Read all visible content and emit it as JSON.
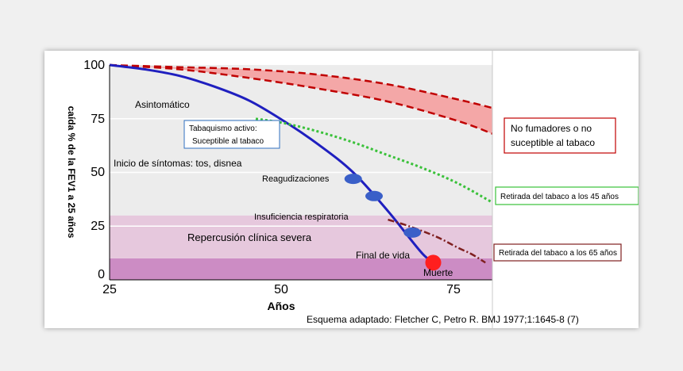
{
  "chart_data": {
    "type": "line",
    "xlabel": "Años",
    "ylabel": "caída % de la FEV1 a 25 años",
    "xlim": [
      25,
      80
    ],
    "ylim": [
      0,
      100
    ],
    "x_ticks": [
      "25",
      "50",
      "75"
    ],
    "y_ticks": [
      "100",
      "75",
      "50",
      "25",
      "0"
    ],
    "background_bands": [
      {
        "from": 0,
        "to": 10,
        "color": "#cc8cc4"
      },
      {
        "from": 10,
        "to": 30,
        "color": "#e6c8dd"
      },
      {
        "from": 30,
        "to": 100,
        "color": "#ececec"
      }
    ],
    "series": [
      {
        "name": "No fumadores o no suceptible al tabaco",
        "style": "red-dashed-band",
        "color": "#c00000",
        "x": [
          25,
          35,
          45,
          55,
          65,
          75,
          80
        ],
        "upper": [
          100,
          99,
          98,
          95.5,
          91,
          84,
          80
        ],
        "lower": [
          100,
          98,
          94,
          89,
          83,
          74,
          68
        ]
      },
      {
        "name": "Tabaquismo activo: Suceptible al tabaco",
        "style": "solid",
        "color": "#1f1fbf",
        "x": [
          25,
          30,
          35,
          40,
          45,
          50,
          55,
          60,
          65,
          70,
          72
        ],
        "y": [
          100,
          98,
          95,
          90,
          83.5,
          74,
          63,
          50,
          32,
          12,
          8
        ]
      },
      {
        "name": "Retirada del tabaco a los  45 años",
        "style": "green-dotted",
        "color": "#3ac13a",
        "x": [
          46,
          50,
          55,
          60,
          65,
          70,
          75,
          80
        ],
        "y": [
          75,
          73,
          69,
          64,
          58,
          52,
          45,
          36
        ]
      },
      {
        "name": "Retirada del tabaco a los 65 años",
        "style": "darkred-dashdot",
        "color": "#7f1f1f",
        "x": [
          65,
          68,
          72,
          75,
          77,
          79
        ],
        "y": [
          28,
          25,
          20,
          15,
          12,
          8
        ]
      }
    ],
    "markers": [
      {
        "label": "Reagudizaciones",
        "x": 60,
        "y": 47,
        "color": "#3a5fc8",
        "kind": "ellipse"
      },
      {
        "label": "",
        "x": 63,
        "y": 39,
        "color": "#3a5fc8",
        "kind": "ellipse"
      },
      {
        "label": "",
        "x": 68.5,
        "y": 22,
        "color": "#3a5fc8",
        "kind": "ellipse"
      },
      {
        "label": "Muerte",
        "x": 71.5,
        "y": 8,
        "color": "#ff1f1f",
        "kind": "circle"
      }
    ],
    "annotations": {
      "asintomatico": "Asintomático",
      "tabaquismo": [
        "Tabaquismo activo:",
        "Suceptible al tabaco"
      ],
      "inicio": "Inicio de síntomas: tos, disnea",
      "reagudizaciones": "Reagudizaciones",
      "insuficiencia": "Insuficiencia respiratoria",
      "repercusion": "Repercusión clínica severa",
      "final": "Final de vida",
      "muerte": "Muerte"
    },
    "legend_boxes": {
      "no_fumadores": [
        "No fumadores o no",
        "suceptible al tabaco"
      ],
      "retirada_45": "Retirada del tabaco a los  45 años",
      "retirada_65": "Retirada del tabaco a los 65 años"
    },
    "source": "Esquema adaptado:  Fletcher C, Petro R. BMJ 1977;1:1645-8 (7)"
  }
}
